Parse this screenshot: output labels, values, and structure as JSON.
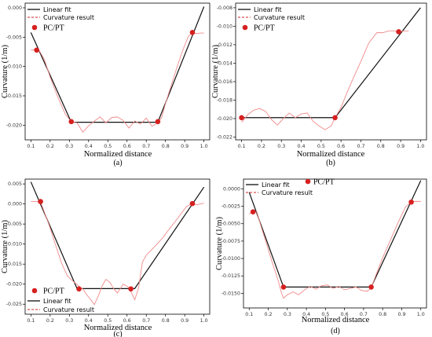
{
  "legend": {
    "fit_label": "Linear fit",
    "curv_label": "Curvature result",
    "pcpt_label": "PC/PT"
  },
  "colors": {
    "fit": "#111111",
    "curvature": "#f08a8a",
    "pcpt": "#d62020"
  },
  "chart_data": [
    {
      "caption": "(a)",
      "type": "line",
      "xlabel": "Normalized distance",
      "ylabel": "Curvature (1/m)",
      "xlim": [
        0.07,
        1.03
      ],
      "ylim": [
        -0.0225,
        0.0008
      ],
      "xticks": [
        0.1,
        0.2,
        0.3,
        0.4,
        0.5,
        0.6,
        0.7,
        0.8,
        0.9,
        1.0
      ],
      "xtick_labels": [
        "0.1",
        "0.2",
        "0.3",
        "0.4",
        "0.5",
        "0.6",
        "0.7",
        "0.8",
        "0.9",
        "1.0"
      ],
      "yticks": [
        0,
        -0.005,
        -0.01,
        -0.015,
        -0.02
      ],
      "ytick_labels": [
        "0.000",
        "-0.005",
        "-0.010",
        "-0.015",
        "-0.020"
      ],
      "linear_fit": {
        "x": [
          0.1,
          0.31,
          0.76,
          1.0
        ],
        "y": [
          -0.0042,
          -0.0195,
          -0.0195,
          0.0002
        ]
      },
      "curvature": {
        "x": [
          0.1,
          0.12,
          0.14,
          0.17,
          0.2,
          0.24,
          0.28,
          0.31,
          0.34,
          0.37,
          0.4,
          0.43,
          0.46,
          0.49,
          0.52,
          0.55,
          0.58,
          0.61,
          0.64,
          0.67,
          0.7,
          0.73,
          0.76,
          0.78,
          0.8,
          0.83,
          0.86,
          0.89,
          0.92,
          0.94,
          0.96,
          0.98,
          1.0
        ],
        "y": [
          -0.0072,
          -0.0072,
          -0.0071,
          -0.0088,
          -0.0118,
          -0.0152,
          -0.0182,
          -0.0194,
          -0.0196,
          -0.0212,
          -0.0201,
          -0.0193,
          -0.0186,
          -0.0196,
          -0.0187,
          -0.0186,
          -0.0192,
          -0.0205,
          -0.0193,
          -0.0198,
          -0.0188,
          -0.0202,
          -0.0196,
          -0.0187,
          -0.0163,
          -0.0132,
          -0.0101,
          -0.0072,
          -0.0048,
          -0.0043,
          -0.0044,
          -0.0043,
          -0.0043
        ]
      },
      "pcpt": {
        "x": [
          0.13,
          0.31,
          0.76,
          0.94
        ],
        "y": [
          -0.0072,
          -0.0194,
          -0.0194,
          -0.0042
        ]
      }
    },
    {
      "caption": "(b)",
      "type": "line",
      "xlabel": "Normalized distance",
      "ylabel": "Curvature (1/m)",
      "xlim": [
        0.07,
        1.03
      ],
      "ylim": [
        -0.0223,
        -0.0075
      ],
      "xticks": [
        0.1,
        0.2,
        0.3,
        0.4,
        0.5,
        0.6,
        0.7,
        0.8,
        0.9,
        1.0
      ],
      "xtick_labels": [
        "0.1",
        "0.2",
        "0.3",
        "0.4",
        "0.5",
        "0.6",
        "0.7",
        "0.8",
        "0.9",
        "1.0"
      ],
      "yticks": [
        -0.008,
        -0.01,
        -0.012,
        -0.014,
        -0.016,
        -0.018,
        -0.02,
        -0.022
      ],
      "ytick_labels": [
        "-0.008",
        "-0.010",
        "-0.012",
        "-0.014",
        "-0.016",
        "-0.018",
        "-0.020",
        "-0.022"
      ],
      "linear_fit": {
        "x": [
          0.1,
          0.57,
          1.0
        ],
        "y": [
          -0.0199,
          -0.0199,
          -0.008
        ]
      },
      "curvature": {
        "x": [
          0.1,
          0.13,
          0.16,
          0.19,
          0.22,
          0.25,
          0.28,
          0.31,
          0.34,
          0.37,
          0.4,
          0.43,
          0.46,
          0.49,
          0.52,
          0.55,
          0.57,
          0.6,
          0.63,
          0.66,
          0.7,
          0.74,
          0.78,
          0.81,
          0.84,
          0.87,
          0.89,
          0.92,
          0.94
        ],
        "y": [
          -0.0204,
          -0.0196,
          -0.0191,
          -0.0189,
          -0.0192,
          -0.0201,
          -0.0207,
          -0.02,
          -0.0194,
          -0.0199,
          -0.0195,
          -0.0194,
          -0.0203,
          -0.0208,
          -0.0212,
          -0.0208,
          -0.0199,
          -0.0188,
          -0.0172,
          -0.0157,
          -0.0138,
          -0.0118,
          -0.0107,
          -0.0107,
          -0.0105,
          -0.0105,
          -0.0106,
          -0.0105,
          -0.0105
        ]
      },
      "pcpt": {
        "x": [
          0.1,
          0.57,
          0.89
        ],
        "y": [
          -0.0199,
          -0.0199,
          -0.0106
        ]
      }
    },
    {
      "caption": "(c)",
      "type": "line",
      "xlabel": "Normalized distance",
      "ylabel": "Curvature (1/m)",
      "xlim": [
        0.07,
        1.03
      ],
      "ylim": [
        -0.0275,
        0.0062
      ],
      "xticks": [
        0.1,
        0.2,
        0.3,
        0.4,
        0.5,
        0.6,
        0.7,
        0.8,
        0.9,
        1.0
      ],
      "xtick_labels": [
        "0.1",
        "0.2",
        "0.3",
        "0.4",
        "0.5",
        "0.6",
        "0.7",
        "0.8",
        "0.9",
        "1.0"
      ],
      "yticks": [
        0.005,
        0,
        -0.005,
        -0.01,
        -0.015,
        -0.02,
        -0.025
      ],
      "ytick_labels": [
        "0.005",
        "0.000",
        "-0.005",
        "-0.010",
        "-0.015",
        "-0.020",
        "-0.025"
      ],
      "linear_fit": {
        "x": [
          0.1,
          0.34,
          0.64,
          1.0
        ],
        "y": [
          0.0055,
          -0.0211,
          -0.0211,
          0.0042
        ]
      },
      "curvature": {
        "x": [
          0.1,
          0.13,
          0.15,
          0.17,
          0.2,
          0.23,
          0.26,
          0.29,
          0.32,
          0.35,
          0.37,
          0.39,
          0.41,
          0.43,
          0.45,
          0.47,
          0.49,
          0.51,
          0.53,
          0.55,
          0.58,
          0.61,
          0.64,
          0.66,
          0.68,
          0.7,
          0.73,
          0.76,
          0.79,
          0.82,
          0.85,
          0.88,
          0.91,
          0.94,
          0.96,
          0.98,
          1.0
        ],
        "y": [
          0.0006,
          0.0006,
          0.0005,
          -0.002,
          -0.006,
          -0.0105,
          -0.0148,
          -0.018,
          -0.0193,
          -0.0205,
          -0.0212,
          -0.0226,
          -0.0238,
          -0.0251,
          -0.023,
          -0.0205,
          -0.0188,
          -0.0195,
          -0.0211,
          -0.0222,
          -0.02,
          -0.0208,
          -0.0239,
          -0.021,
          -0.0145,
          -0.0128,
          -0.0113,
          -0.0098,
          -0.0082,
          -0.0062,
          -0.0044,
          -0.0025,
          -0.0006,
          0.0001,
          -0.0002,
          0.0,
          0.0002
        ]
      },
      "pcpt": {
        "x": [
          0.15,
          0.35,
          0.62,
          0.94
        ],
        "y": [
          0.0006,
          -0.0212,
          -0.0212,
          0.0001
        ]
      }
    },
    {
      "caption": "(d)",
      "type": "line",
      "xlabel": "Normalized distance",
      "ylabel": "Curvature (1/m)",
      "xlim": [
        0.07,
        1.03
      ],
      "ylim": [
        -0.0171,
        0.0014
      ],
      "xticks": [
        0.1,
        0.2,
        0.3,
        0.4,
        0.5,
        0.6,
        0.7,
        0.8,
        0.9,
        1.0
      ],
      "xtick_labels": [
        "0.1",
        "0.2",
        "0.3",
        "0.4",
        "0.5",
        "0.6",
        "0.7",
        "0.8",
        "0.9",
        "1.0"
      ],
      "yticks": [
        0,
        -0.0025,
        -0.005,
        -0.0075,
        -0.01,
        -0.0125,
        -0.015
      ],
      "ytick_labels": [
        "0.0000",
        "-0.0025",
        "-0.0050",
        "-0.0075",
        "-0.0100",
        "-0.0125",
        "-0.0150"
      ],
      "linear_fit": {
        "x": [
          0.1,
          0.28,
          0.74,
          1.0
        ],
        "y": [
          -0.0005,
          -0.0141,
          -0.0141,
          0.0012
        ]
      },
      "curvature": {
        "x": [
          0.1,
          0.12,
          0.14,
          0.16,
          0.19,
          0.22,
          0.25,
          0.27,
          0.28,
          0.3,
          0.33,
          0.36,
          0.39,
          0.42,
          0.45,
          0.48,
          0.51,
          0.54,
          0.57,
          0.6,
          0.63,
          0.66,
          0.69,
          0.72,
          0.74,
          0.77,
          0.8,
          0.84,
          0.88,
          0.92,
          0.95,
          0.97,
          1.0
        ],
        "y": [
          -0.0036,
          -0.0034,
          -0.0033,
          -0.0052,
          -0.0078,
          -0.0105,
          -0.013,
          -0.015,
          -0.0157,
          -0.0152,
          -0.0148,
          -0.0152,
          -0.0145,
          -0.014,
          -0.0144,
          -0.0139,
          -0.0138,
          -0.0143,
          -0.014,
          -0.0145,
          -0.0143,
          -0.0141,
          -0.0146,
          -0.0147,
          -0.0142,
          -0.012,
          -0.0099,
          -0.0074,
          -0.0049,
          -0.0026,
          -0.0019,
          -0.0018,
          -0.0018
        ]
      },
      "pcpt": {
        "x": [
          0.12,
          0.28,
          0.74,
          0.95
        ],
        "y": [
          -0.0033,
          -0.0141,
          -0.0141,
          -0.0019
        ]
      }
    }
  ]
}
